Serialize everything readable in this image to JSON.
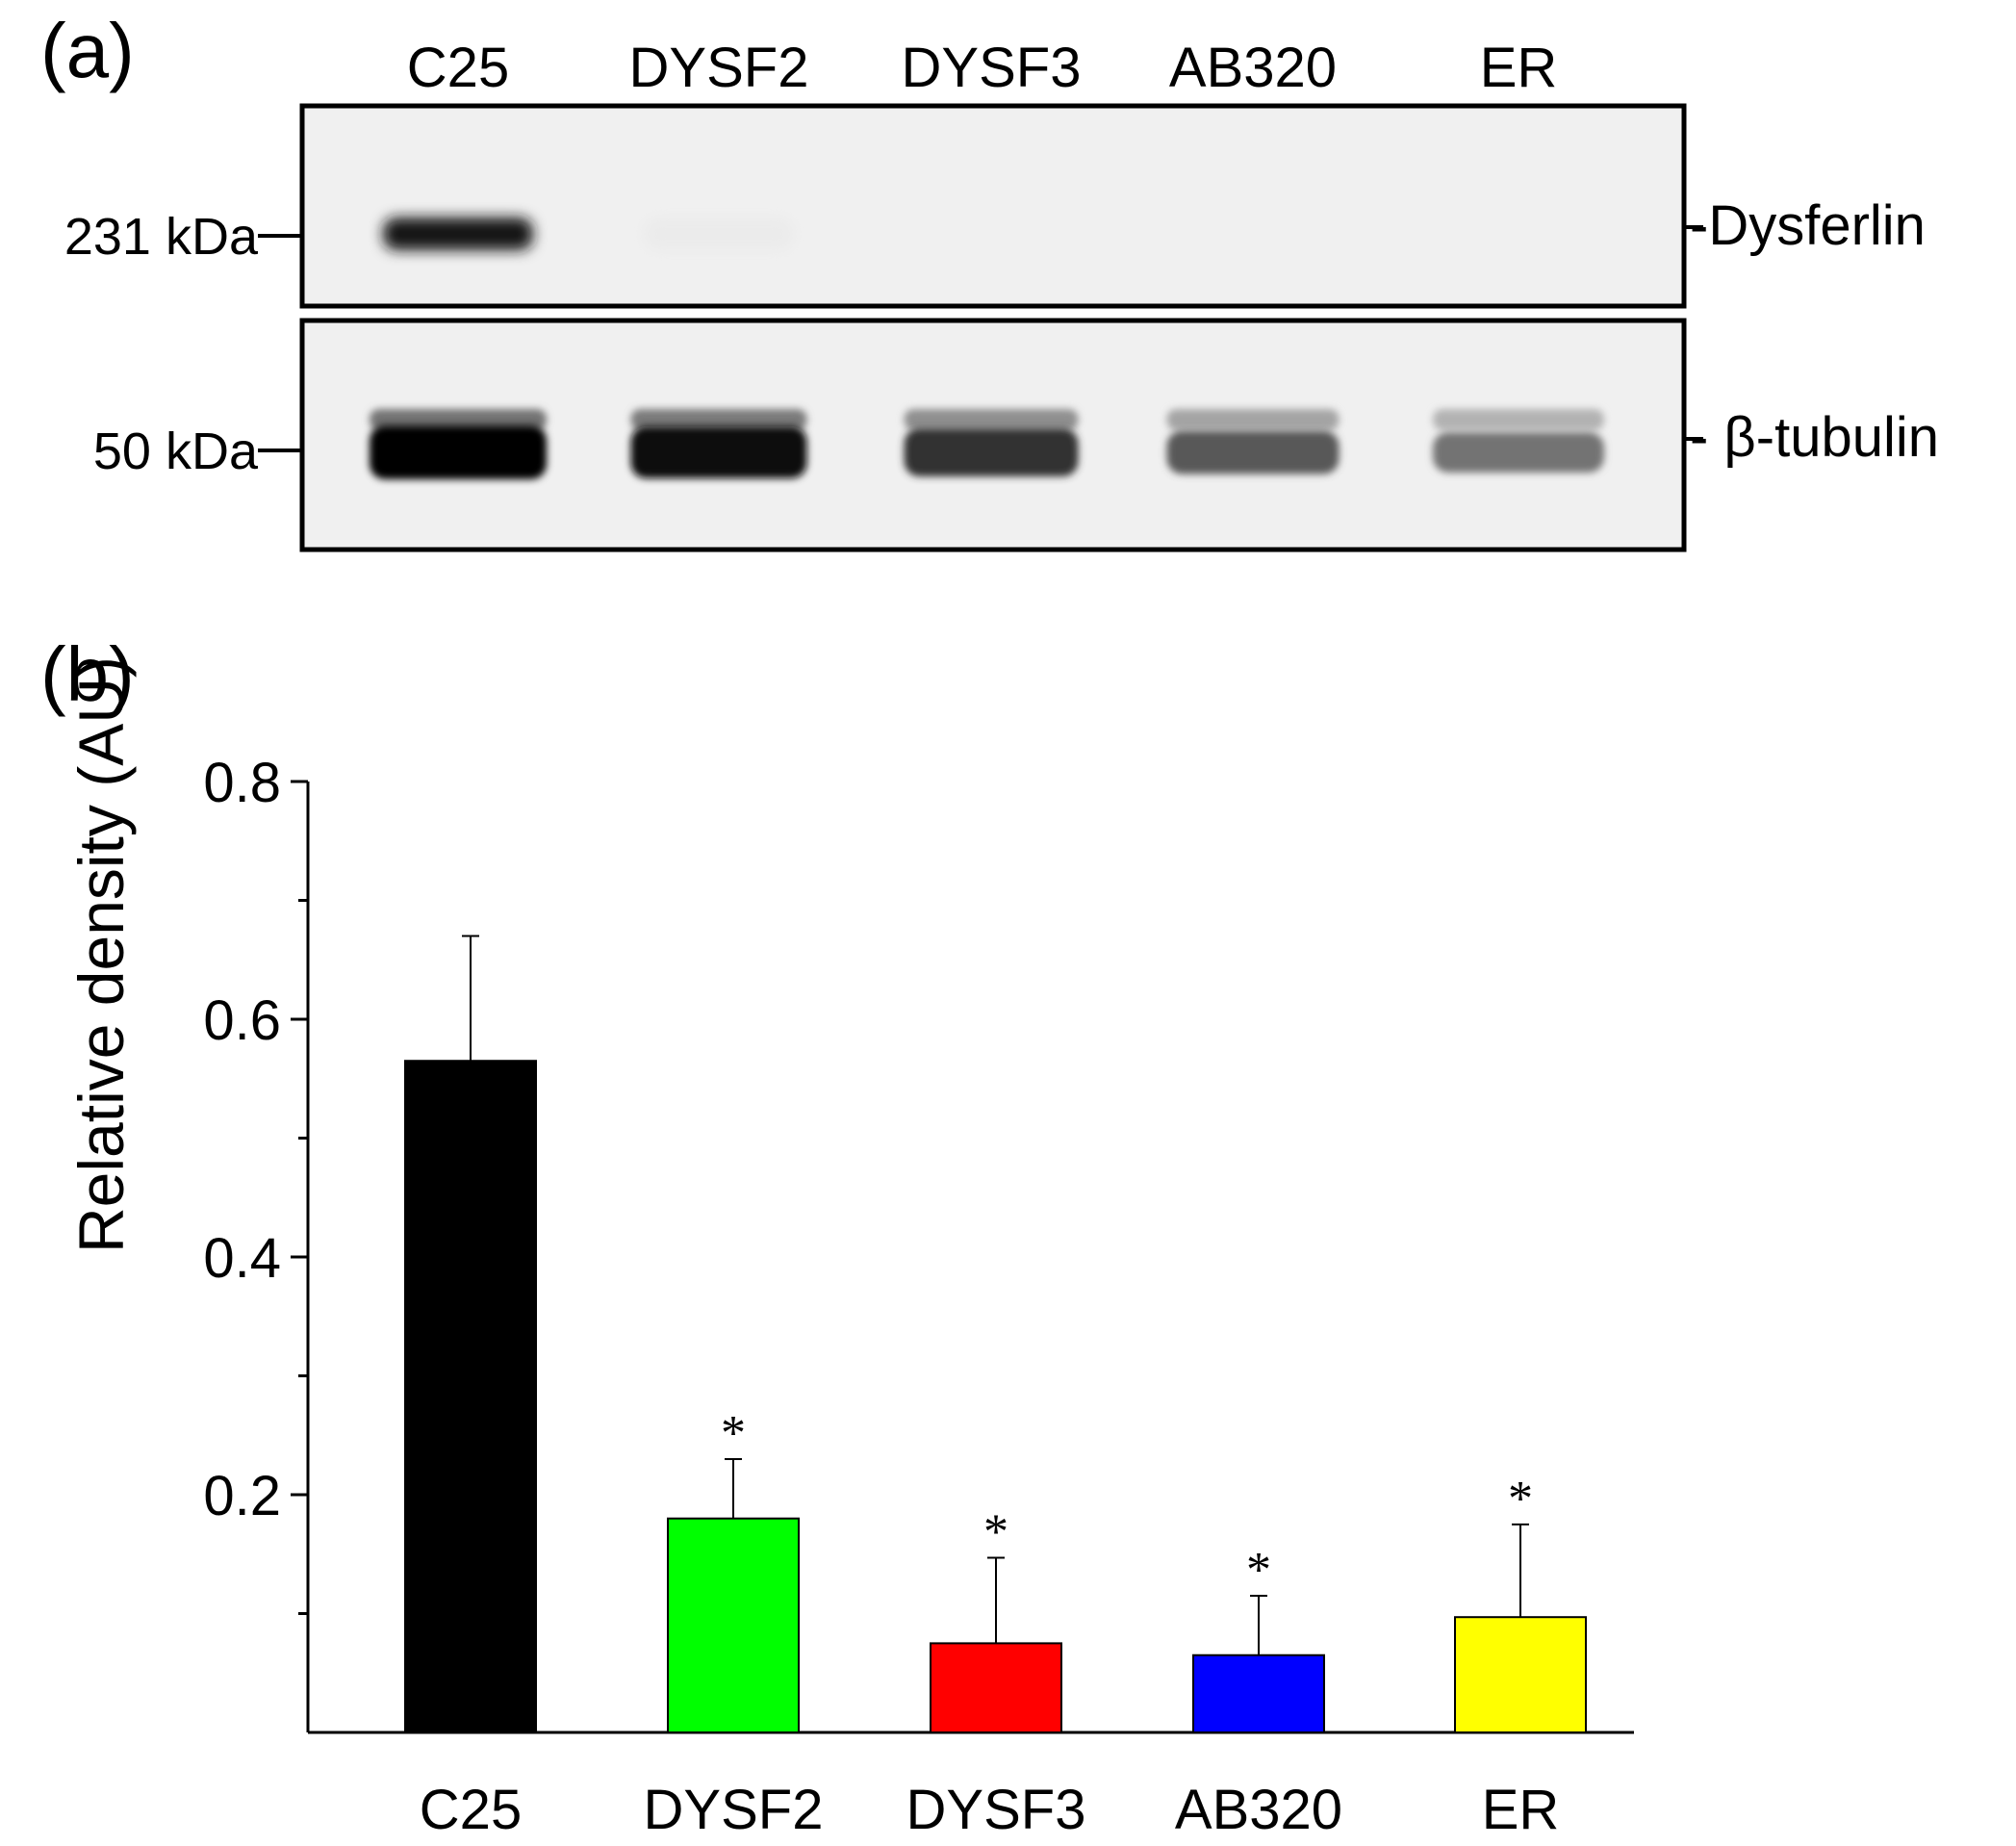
{
  "panel_a": {
    "letter": "(a)",
    "lanes": [
      "C25",
      "DYSF2",
      "DYSF3",
      "AB320",
      "ER"
    ],
    "blots": [
      {
        "marker": "231 kDa",
        "protein": "-Dysferlin",
        "band_intensity": [
          0.9,
          0.08,
          0,
          0,
          0
        ]
      },
      {
        "marker": "50 kDa",
        "protein": "- β-tubulin",
        "band_intensity": [
          1.0,
          0.95,
          0.8,
          0.65,
          0.55
        ]
      }
    ]
  },
  "panel_b": {
    "letter": "(b)"
  },
  "chart_data": {
    "type": "bar",
    "categories": [
      "C25",
      "DYSF2",
      "DYSF3",
      "AB320",
      "ER"
    ],
    "values": [
      0.565,
      0.18,
      0.075,
      0.065,
      0.097
    ],
    "errors": [
      0.105,
      0.05,
      0.072,
      0.05,
      0.078
    ],
    "significance": [
      "",
      "*",
      "*",
      "*",
      "*"
    ],
    "colors": [
      "#000000",
      "#00ff00",
      "#ff0000",
      "#0000ff",
      "#ffff00"
    ],
    "ylabel": "Relative density (AU)",
    "xlabel": "",
    "ylim": [
      0,
      0.8
    ],
    "yticks": [
      "0.2",
      "0.4",
      "0.6",
      "0.8"
    ],
    "ytick_values": [
      0.2,
      0.4,
      0.6,
      0.8
    ],
    "grid": false,
    "error_bars": "upper"
  }
}
